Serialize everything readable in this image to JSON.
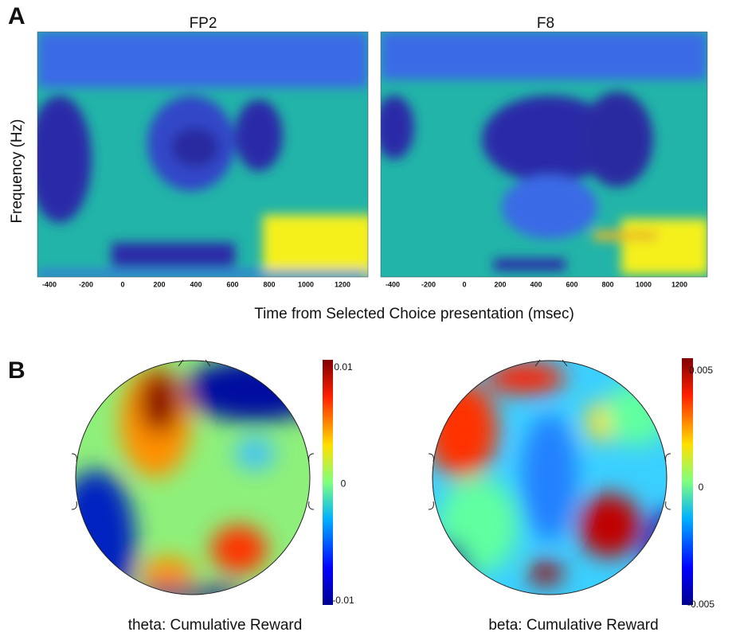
{
  "panel_a": {
    "label": "A",
    "plots": [
      {
        "title": "FP2"
      },
      {
        "title": "F8"
      }
    ],
    "y_label": "Frequency (Hz)",
    "x_ticks": [
      -400,
      -200,
      0,
      200,
      400,
      600,
      800,
      1000,
      1200
    ],
    "x_label": "Time from Selected Choice presentation (msec)"
  },
  "panel_b": {
    "label": "B",
    "plots": [
      {
        "caption": "theta: Cumulative Reward",
        "colorbar_ticks": [
          0.01,
          0,
          -0.01
        ]
      },
      {
        "caption": "beta: Cumulative Reward",
        "colorbar_ticks": [
          0.005,
          0,
          -0.005
        ]
      }
    ]
  }
}
